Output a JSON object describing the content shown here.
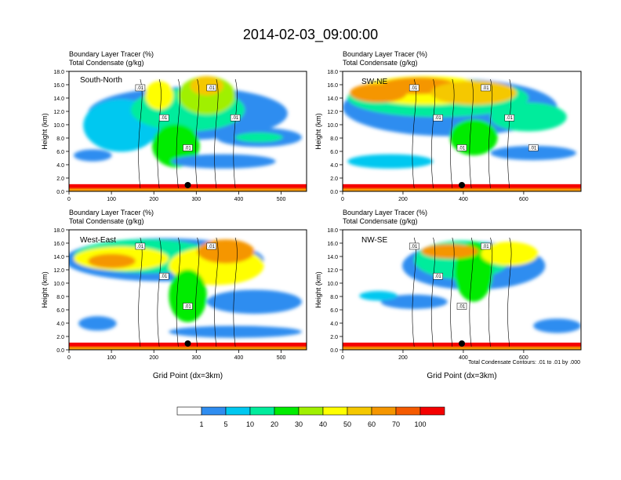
{
  "figure": {
    "title": "2014-02-03_09:00:00",
    "footnote": "Total Condensate Contours: .01 to .01 by .000",
    "xlabel": "Grid Point (dx=3km)",
    "ylabel": "Height (km)",
    "title_line1": "Boundary Layer Tracer    (%)",
    "title_line2": "Total Condensate    (g/kg)"
  },
  "colorbar": {
    "levels": [
      "1",
      "5",
      "10",
      "20",
      "30",
      "40",
      "50",
      "60",
      "70",
      "100"
    ],
    "colors": [
      "#ffffff",
      "#2f8df0",
      "#00c8f0",
      "#00ec9c",
      "#00ec00",
      "#a0f000",
      "#ffff00",
      "#f5c800",
      "#f59600",
      "#f55a00",
      "#f50000"
    ]
  },
  "chart_data": [
    {
      "type": "heatmap",
      "panel": "South-North",
      "title": "Boundary Layer Tracer    (%)",
      "subtitle": "Total Condensate    (g/kg)",
      "xlabel": "",
      "ylabel": "Height (km)",
      "xlim": [
        0,
        560
      ],
      "ylim": [
        0,
        18
      ],
      "xticks": [
        0,
        100,
        200,
        300,
        400,
        500
      ],
      "yticks": [
        "0.0",
        "2.0",
        "4.0",
        "6.0",
        "8.0",
        "10.0",
        "12.0",
        "14.0",
        "16.0",
        "18.0"
      ],
      "contour_labels": [
        ".01",
        ".01",
        ".01",
        ".01",
        ".01"
      ],
      "marker_x": 280
    },
    {
      "type": "heatmap",
      "panel": "SW-NE",
      "title": "Boundary Layer Tracer    (%)",
      "subtitle": "Total Condensate    (g/kg)",
      "xlabel": "",
      "ylabel": "Height (km)",
      "xlim": [
        0,
        790
      ],
      "ylim": [
        0,
        18
      ],
      "xticks": [
        0,
        200,
        400,
        600
      ],
      "yticks": [
        "0.0",
        "2.0",
        "4.0",
        "6.0",
        "8.0",
        "10.0",
        "12.0",
        "14.0",
        "16.0",
        "18.0"
      ],
      "contour_labels": [
        ".01",
        ".01",
        ".01",
        ".01",
        ".01",
        ".01"
      ],
      "marker_x": 395
    },
    {
      "type": "heatmap",
      "panel": "West-East",
      "title": "Boundary Layer Tracer    (%)",
      "subtitle": "Total Condensate    (g/kg)",
      "xlabel": "Grid Point (dx=3km)",
      "ylabel": "Height (km)",
      "xlim": [
        0,
        560
      ],
      "ylim": [
        0,
        18
      ],
      "xticks": [
        0,
        100,
        200,
        300,
        400,
        500
      ],
      "yticks": [
        "0.0",
        "2.0",
        "4.0",
        "6.0",
        "8.0",
        "10.0",
        "12.0",
        "14.0",
        "16.0",
        "18.0"
      ],
      "contour_labels": [
        ".01",
        ".01",
        ".01",
        ".01"
      ],
      "marker_x": 280
    },
    {
      "type": "heatmap",
      "panel": "NW-SE",
      "title": "Boundary Layer Tracer    (%)",
      "subtitle": "Total Condensate    (g/kg)",
      "xlabel": "Grid Point (dx=3km)",
      "ylabel": "Height (km)",
      "xlim": [
        0,
        790
      ],
      "ylim": [
        0,
        18
      ],
      "xticks": [
        0,
        200,
        400,
        600
      ],
      "yticks": [
        "0.0",
        "2.0",
        "4.0",
        "6.0",
        "8.0",
        "10.0",
        "12.0",
        "14.0",
        "16.0",
        "18.0"
      ],
      "contour_labels": [
        ".01",
        ".01",
        ".01",
        ".01"
      ],
      "marker_x": 395
    }
  ]
}
